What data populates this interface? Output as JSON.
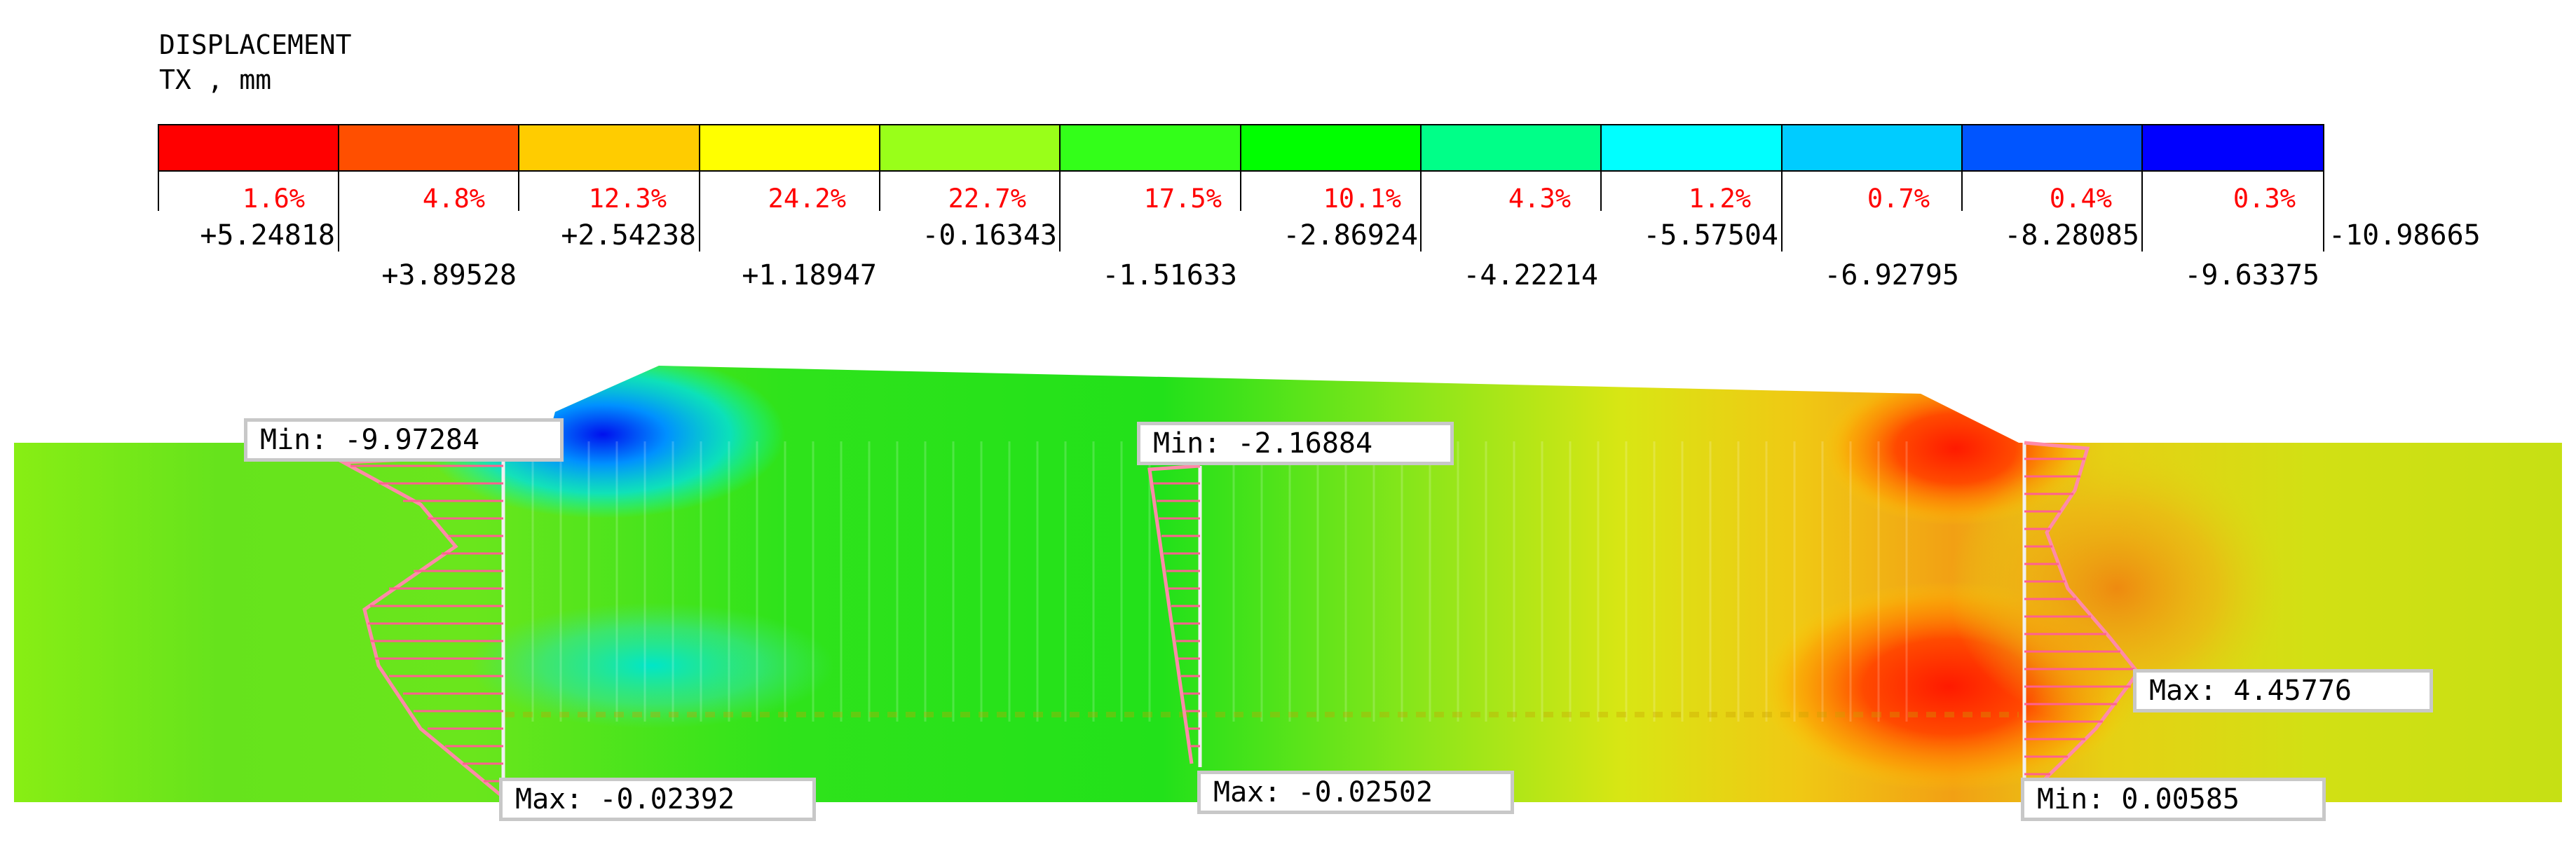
{
  "header": {
    "title": "DISPLACEMENT",
    "subtitle": "TX , mm"
  },
  "legend": {
    "colors": [
      "#ff0000",
      "#ff4f00",
      "#ffcc00",
      "#ffff00",
      "#99ff19",
      "#33ff19",
      "#00ff00",
      "#00ff88",
      "#00ffff",
      "#00ccff",
      "#0055ff",
      "#0000ff"
    ],
    "percents": [
      "1.6%",
      "4.8%",
      "12.3%",
      "24.2%",
      "22.7%",
      "17.5%",
      "10.1%",
      "4.3%",
      "1.2%",
      "0.7%",
      "0.4%",
      "0.3%"
    ],
    "values": [
      "+5.24818",
      "+3.89528",
      "+2.54238",
      "+1.18947",
      "-0.16343",
      "-1.51633",
      "-2.86924",
      "-4.22214",
      "-5.57504",
      "-6.92795",
      "-8.28085",
      "-9.63375",
      "-10.98665"
    ]
  },
  "annotations": {
    "left_min": "Min: -9.97284",
    "left_max": "Max: -0.02392",
    "mid_min": "Min: -2.16884",
    "mid_max": "Max: -0.02502",
    "right_max": "Max: 4.45776",
    "right_min": "Min: 0.00585"
  }
}
